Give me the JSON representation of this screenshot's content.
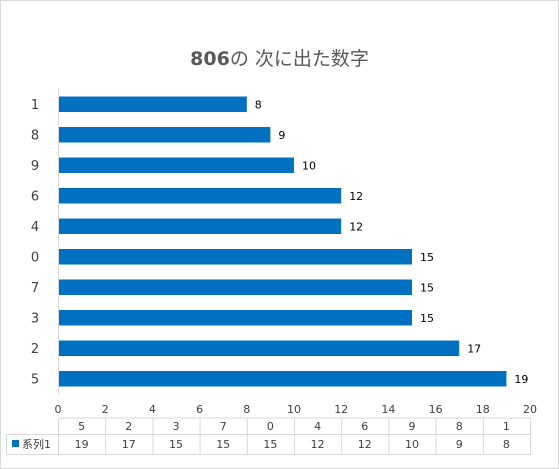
{
  "chart_data": {
    "type": "bar",
    "orientation": "horizontal",
    "title": "806の 次に出た数字",
    "title_bold_part": "806",
    "title_rest": "の 次に出た数字",
    "categories": [
      "1",
      "8",
      "9",
      "6",
      "4",
      "0",
      "7",
      "3",
      "2",
      "5"
    ],
    "series": [
      {
        "name": "系列1",
        "values": [
          8,
          9,
          10,
          12,
          12,
          15,
          15,
          15,
          17,
          19
        ],
        "color": "#0070C0"
      }
    ],
    "xlim": [
      0,
      20
    ],
    "xticks": [
      0,
      2,
      4,
      6,
      8,
      10,
      12,
      14,
      16,
      18,
      20
    ],
    "data_labels": true,
    "grid": false,
    "data_table": {
      "header": [
        "5",
        "2",
        "3",
        "7",
        "0",
        "4",
        "6",
        "9",
        "8",
        "1"
      ],
      "row_label": "系列1",
      "values": [
        "19",
        "17",
        "15",
        "15",
        "15",
        "12",
        "12",
        "10",
        "9",
        "8"
      ]
    }
  }
}
